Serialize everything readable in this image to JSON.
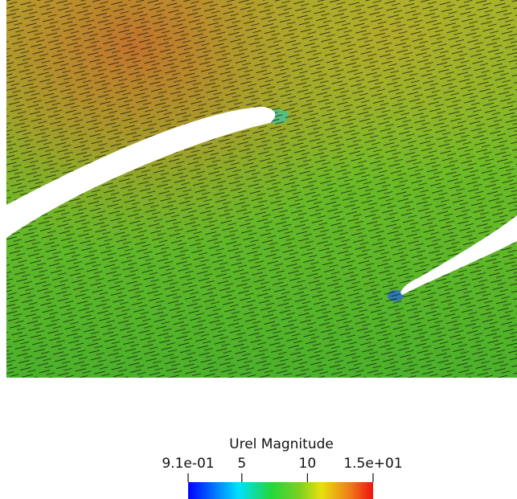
{
  "colorbar": {
    "title": "Urel Magnitude",
    "range": [
      0.91,
      15
    ],
    "ticks": [
      {
        "value": 0.91,
        "label": "9.1e-01"
      },
      5,
      10,
      {
        "value": 15,
        "label": "1.5e+01"
      }
    ]
  }
}
